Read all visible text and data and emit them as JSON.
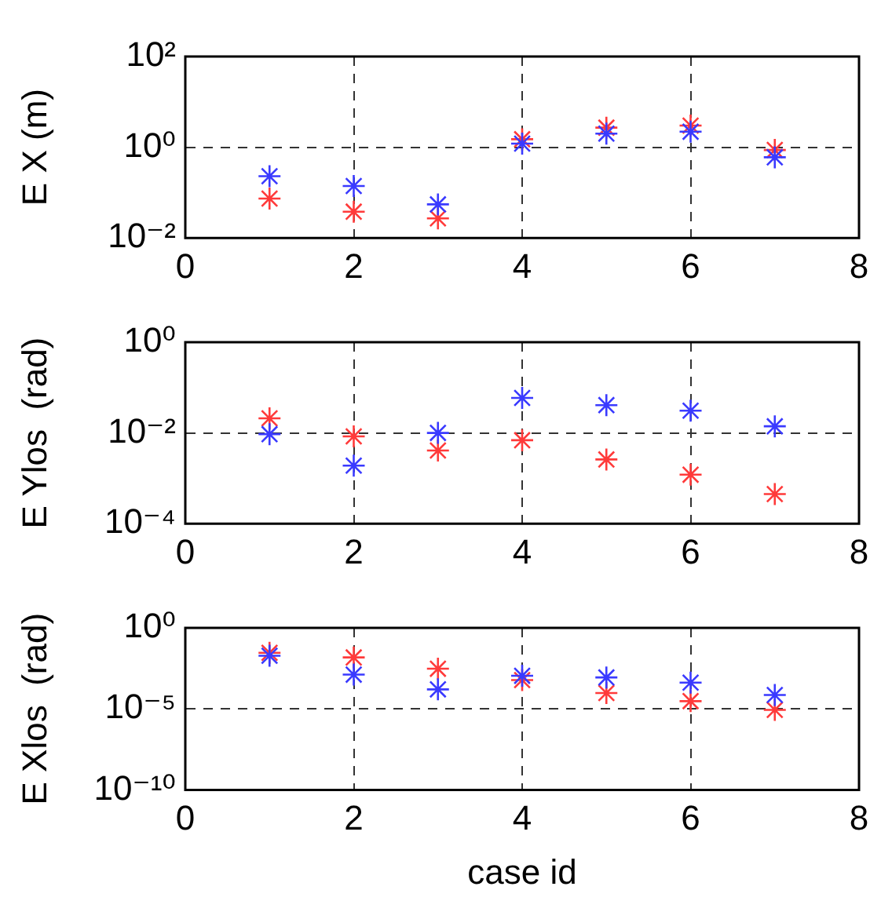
{
  "chart_data": [
    {
      "type": "scatter",
      "ylabel": "E X (m)",
      "x": [
        1,
        2,
        3,
        4,
        5,
        6,
        7
      ],
      "xlim": [
        0,
        8
      ],
      "xticks": [
        0,
        2,
        4,
        6,
        8
      ],
      "ylim": [
        0.01,
        100
      ],
      "yticks": [
        {
          "value": 0.01,
          "label": "10⁻²"
        },
        {
          "value": 1,
          "label": "10⁰"
        },
        {
          "value": 100,
          "label": "10²"
        }
      ],
      "log": "y",
      "grid": true,
      "marker": "cross",
      "series": [
        {
          "color": "#3a3aff",
          "values": [
            0.23,
            0.14,
            0.055,
            1.2,
            2.0,
            2.2,
            0.6
          ]
        },
        {
          "color": "#ff3a3a",
          "values": [
            0.074,
            0.038,
            0.027,
            1.5,
            2.7,
            3.0,
            0.87
          ]
        }
      ]
    },
    {
      "type": "scatter",
      "ylabel": "E Ylos  (rad)",
      "x": [
        1,
        2,
        3,
        4,
        5,
        6,
        7
      ],
      "xlim": [
        0,
        8
      ],
      "xticks": [
        0,
        2,
        4,
        6,
        8
      ],
      "ylim": [
        0.0001,
        1
      ],
      "yticks": [
        {
          "value": 0.0001,
          "label": "10⁻⁴"
        },
        {
          "value": 0.01,
          "label": "10⁻²"
        },
        {
          "value": 1,
          "label": "10⁰"
        }
      ],
      "log": "y",
      "grid": true,
      "marker": "cross",
      "series": [
        {
          "color": "#3a3aff",
          "values": [
            0.0094,
            0.0019,
            0.01,
            0.059,
            0.041,
            0.031,
            0.014
          ]
        },
        {
          "color": "#ff3a3a",
          "values": [
            0.021,
            0.0084,
            0.0041,
            0.0069,
            0.0026,
            0.0012,
            0.00045
          ]
        }
      ]
    },
    {
      "type": "scatter",
      "xlabel": "case id",
      "ylabel": "E Xlos  (rad)",
      "x": [
        1,
        2,
        3,
        4,
        5,
        6,
        7
      ],
      "xlim": [
        0,
        8
      ],
      "xticks": [
        0,
        2,
        4,
        6,
        8
      ],
      "ylim": [
        1e-10,
        1
      ],
      "yticks": [
        {
          "value": 1e-10,
          "label": "10⁻¹⁰"
        },
        {
          "value": 1e-05,
          "label": "10⁻⁵"
        },
        {
          "value": 1,
          "label": "10⁰"
        }
      ],
      "log": "y",
      "grid": true,
      "marker": "cross",
      "series": [
        {
          "color": "#3a3aff",
          "values": [
            0.019,
            0.0013,
            0.00016,
            0.0011,
            0.00087,
            0.00042,
            7.2e-05
          ]
        },
        {
          "color": "#ff3a3a",
          "values": [
            0.029,
            0.015,
            0.003,
            0.0006,
            9.5e-05,
            3e-05,
            8.7e-06
          ]
        }
      ]
    }
  ]
}
